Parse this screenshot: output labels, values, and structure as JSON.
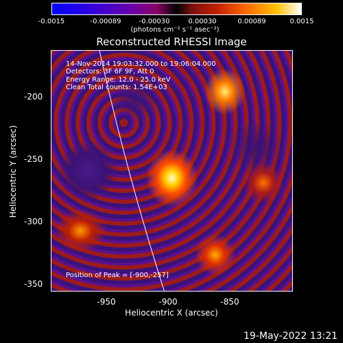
{
  "colorbar": {
    "ticks": [
      "-0.0015",
      "-0.00089",
      "-0.00030",
      "0.00030",
      "0.00089",
      "0.0015"
    ],
    "units": "(photons cm⁻² s⁻¹ asec⁻²)"
  },
  "title": "Reconstructed RHESSI Image",
  "info": {
    "time": "14-Nov-2014 19:03:32.000 to 19:06:04.000",
    "detectors": "Detectors: 3F 6F 9F, Att 0",
    "energy": "Energy Range: 12.0 - 25.0 keV",
    "clean": "Clean     Total counts: 1.54E+03",
    "peak": "Position of Peak = [-900,-257]"
  },
  "axes": {
    "xlabel": "Heliocentric X (arcsec)",
    "ylabel": "Heliocentric Y (arcsec)",
    "xticks": [
      "-950",
      "-900",
      "-850"
    ],
    "yticks": [
      "-200",
      "-250",
      "-300",
      "-350"
    ]
  },
  "timestamp": "19-May-2022 13:21"
}
